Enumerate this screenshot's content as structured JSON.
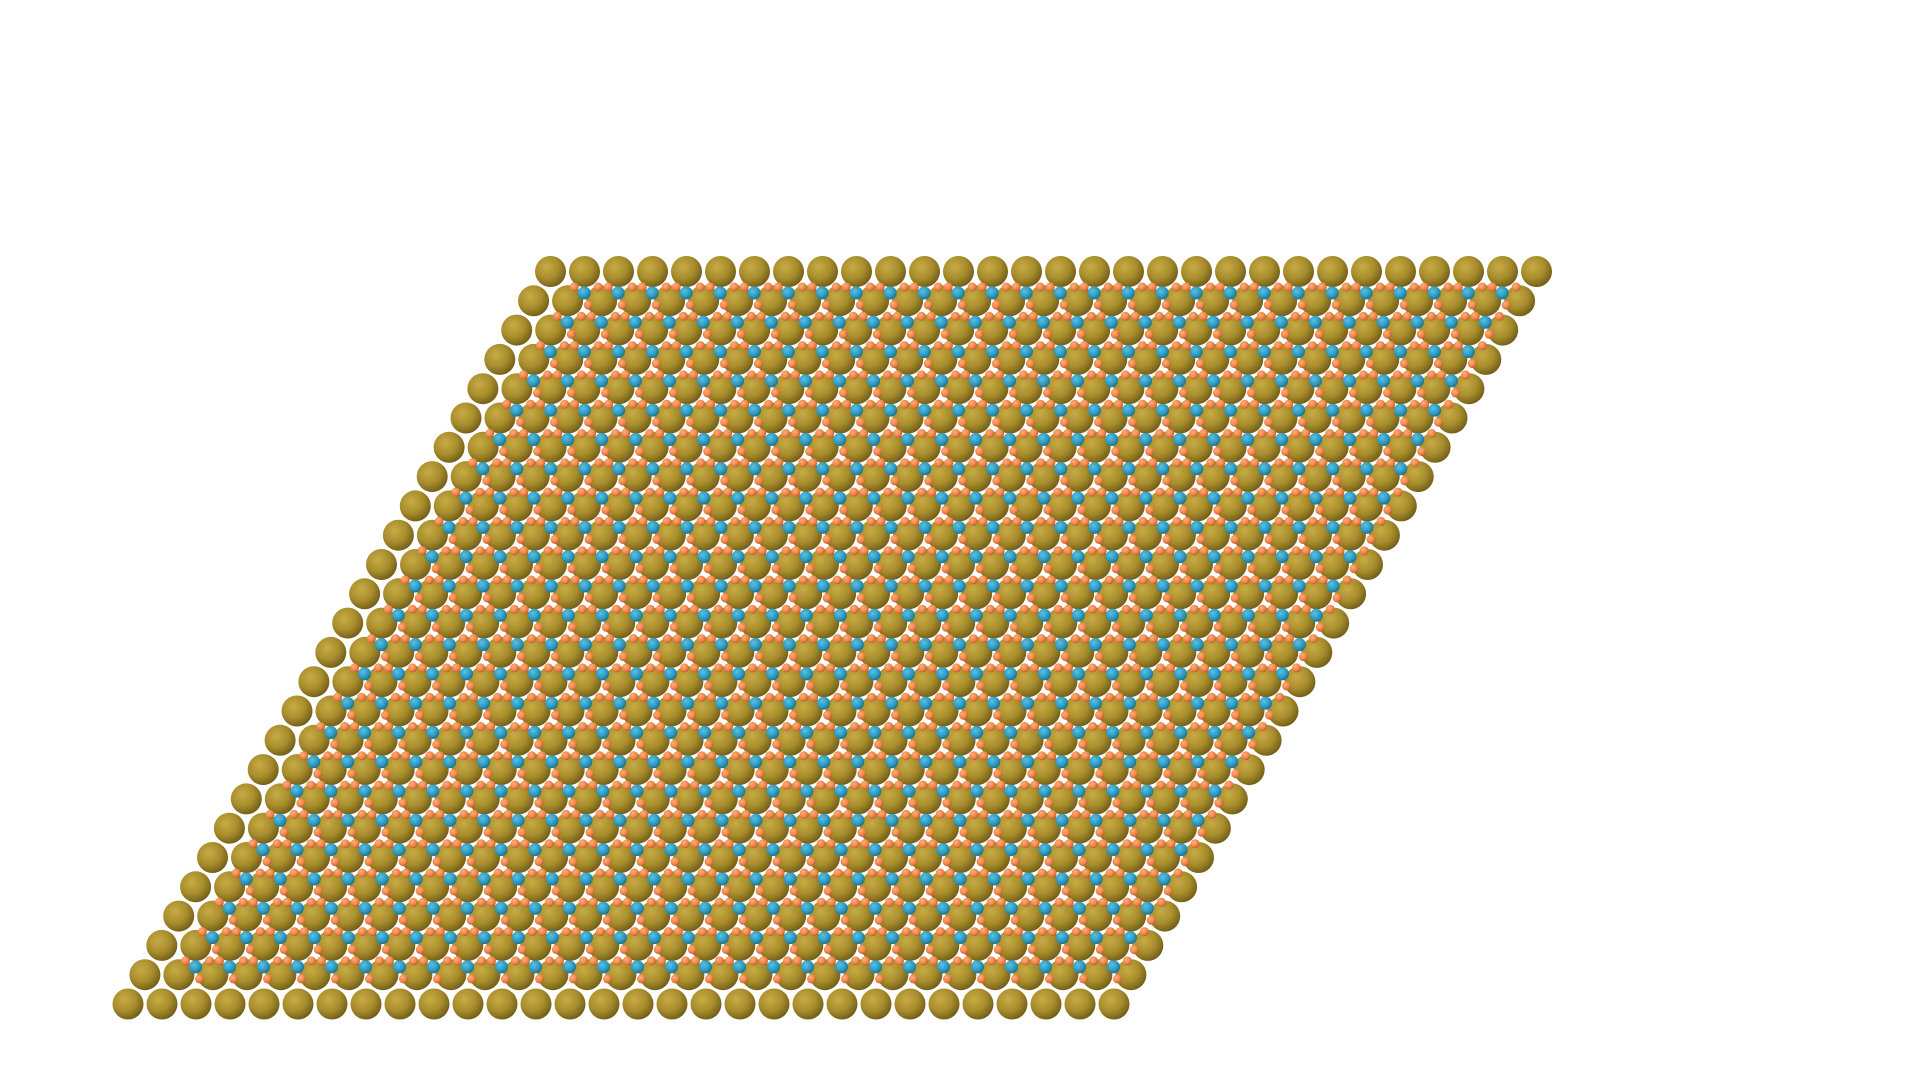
{
  "image": {
    "subject": "atomic-lattice-rhombus",
    "background_color": "#ffffff"
  },
  "lattice": {
    "species": [
      {
        "name": "large-atom",
        "color": "#a88d2c",
        "shade": "#6e5a17"
      },
      {
        "name": "medium-atom",
        "color": "#2e9ac0",
        "shade": "#1c6a88"
      },
      {
        "name": "small-atom",
        "color": "#f0844a",
        "shade": "#b65a28"
      }
    ],
    "rows": 26,
    "columns": 30
  }
}
